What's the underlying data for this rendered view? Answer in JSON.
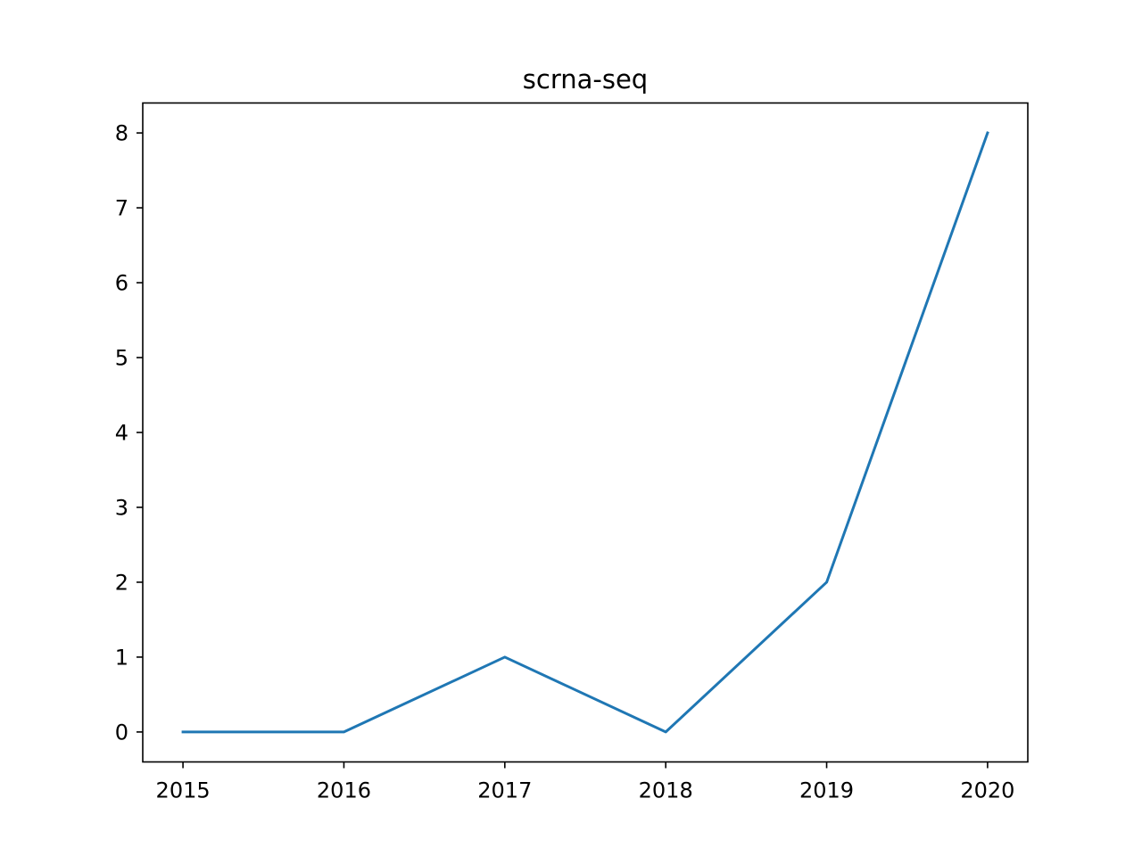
{
  "chart_data": {
    "type": "line",
    "title": "scrna-seq",
    "xlabel": "",
    "ylabel": "",
    "x": [
      2015,
      2016,
      2017,
      2018,
      2019,
      2020
    ],
    "series": [
      {
        "values": [
          0,
          0,
          1,
          0,
          2,
          8
        ],
        "color": "#1f77b4"
      }
    ],
    "xticks": [
      "2015",
      "2016",
      "2017",
      "2018",
      "2019",
      "2020"
    ],
    "yticks": [
      "0",
      "1",
      "2",
      "3",
      "4",
      "5",
      "6",
      "7",
      "8"
    ],
    "xlim": [
      2014.75,
      2020.25
    ],
    "ylim": [
      -0.4,
      8.4
    ],
    "grid": false,
    "legend": "none"
  }
}
